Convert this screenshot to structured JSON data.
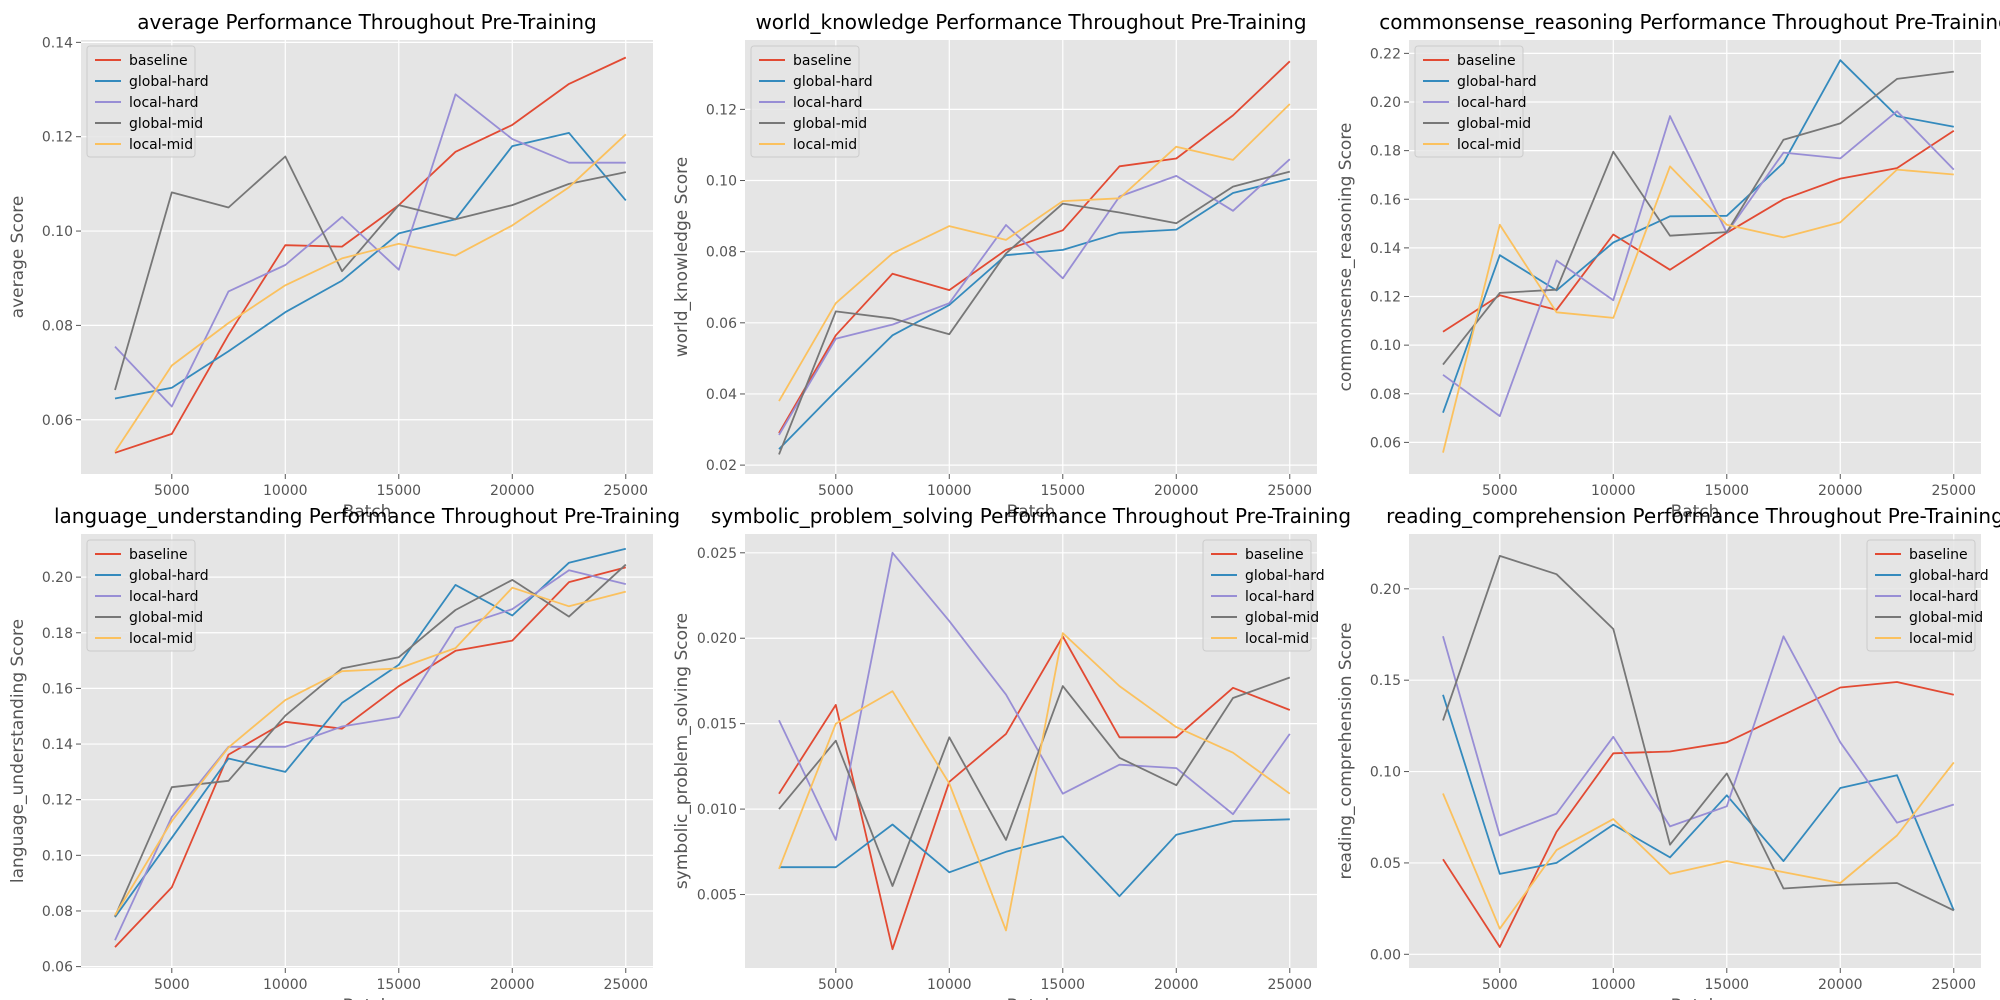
{
  "colors": {
    "baseline": "#E24A33",
    "global-hard": "#348ABD",
    "local-hard": "#988ED5",
    "global-mid": "#777777",
    "local-mid": "#FBC15E",
    "panel_bg": "#E5E5E5",
    "grid": "#FFFFFF"
  },
  "chart_data": [
    {
      "type": "line",
      "title": "average Performance Throughout Pre-Training",
      "xlabel": "Batch",
      "ylabel": "average Score",
      "xlim": [
        1000,
        26200
      ],
      "ylim": [
        0.0485,
        0.1405
      ],
      "xticks": [
        5000,
        10000,
        15000,
        20000,
        25000
      ],
      "yticks": [
        0.06,
        0.08,
        0.1,
        0.12,
        0.14
      ],
      "ytick_decimals": 2,
      "legend_loc": "upper left",
      "grid": true,
      "x": [
        2500,
        5000,
        7500,
        10000,
        12500,
        15000,
        17500,
        20000,
        22500,
        25000
      ],
      "series": [
        {
          "name": "baseline",
          "values": [
            0.053,
            0.057,
            0.078,
            0.097,
            0.0967,
            0.1055,
            0.1168,
            0.1225,
            0.1312,
            0.1368
          ]
        },
        {
          "name": "global-hard",
          "values": [
            0.0645,
            0.0668,
            0.0745,
            0.0828,
            0.0895,
            0.0995,
            0.1025,
            0.118,
            0.1208,
            0.1065
          ]
        },
        {
          "name": "local-hard",
          "values": [
            0.0755,
            0.0628,
            0.0872,
            0.0928,
            0.103,
            0.0918,
            0.129,
            0.1195,
            0.1145,
            0.1145
          ]
        },
        {
          "name": "global-mid",
          "values": [
            0.0663,
            0.1082,
            0.105,
            0.1158,
            0.0915,
            0.1055,
            0.1025,
            0.1055,
            0.11,
            0.1125
          ]
        },
        {
          "name": "local-mid",
          "values": [
            0.0532,
            0.0715,
            0.0805,
            0.0885,
            0.0942,
            0.0973,
            0.0948,
            0.1012,
            0.1093,
            0.1205
          ]
        }
      ]
    },
    {
      "type": "line",
      "title": "world_knowledge Performance Throughout Pre-Training",
      "xlabel": "Batch",
      "ylabel": "world_knowledge Score",
      "xlim": [
        1000,
        26200
      ],
      "ylim": [
        0.0175,
        0.1395
      ],
      "xticks": [
        5000,
        10000,
        15000,
        20000,
        25000
      ],
      "yticks": [
        0.02,
        0.04,
        0.06,
        0.08,
        0.1,
        0.12
      ],
      "ytick_decimals": 2,
      "legend_loc": "upper left",
      "grid": true,
      "x": [
        2500,
        5000,
        7500,
        10000,
        12500,
        15000,
        17500,
        20000,
        22500,
        25000
      ],
      "series": [
        {
          "name": "baseline",
          "values": [
            0.029,
            0.0565,
            0.0738,
            0.0692,
            0.0805,
            0.086,
            0.104,
            0.1062,
            0.1183,
            0.1335
          ]
        },
        {
          "name": "global-hard",
          "values": [
            0.0245,
            0.0408,
            0.0565,
            0.065,
            0.079,
            0.0805,
            0.0853,
            0.0862,
            0.0965,
            0.1005
          ]
        },
        {
          "name": "local-hard",
          "values": [
            0.0285,
            0.0555,
            0.0595,
            0.0655,
            0.0875,
            0.0725,
            0.0955,
            0.1013,
            0.0915,
            0.106
          ]
        },
        {
          "name": "global-mid",
          "values": [
            0.023,
            0.0632,
            0.0612,
            0.0568,
            0.0795,
            0.0935,
            0.091,
            0.088,
            0.0983,
            0.1025
          ]
        },
        {
          "name": "local-mid",
          "values": [
            0.038,
            0.0655,
            0.0795,
            0.0872,
            0.0833,
            0.0942,
            0.095,
            0.1095,
            0.1058,
            0.1215
          ]
        }
      ]
    },
    {
      "type": "line",
      "title": "commonsense_reasoning Performance Throughout Pre-Training",
      "xlabel": "Batch",
      "ylabel": "commonsense_reasoning Score",
      "xlim": [
        1000,
        26200
      ],
      "ylim": [
        0.047,
        0.2255
      ],
      "xticks": [
        5000,
        10000,
        15000,
        20000,
        25000
      ],
      "yticks": [
        0.06,
        0.08,
        0.1,
        0.12,
        0.14,
        0.16,
        0.18,
        0.2,
        0.22
      ],
      "ytick_decimals": 2,
      "legend_loc": "upper left",
      "grid": true,
      "x": [
        2500,
        5000,
        7500,
        10000,
        12500,
        15000,
        17500,
        20000,
        22500,
        25000
      ],
      "series": [
        {
          "name": "baseline",
          "values": [
            0.1055,
            0.1205,
            0.1145,
            0.1455,
            0.131,
            0.1462,
            0.16,
            0.1685,
            0.1728,
            0.1882
          ]
        },
        {
          "name": "global-hard",
          "values": [
            0.0722,
            0.137,
            0.1225,
            0.1422,
            0.153,
            0.1532,
            0.175,
            0.2172,
            0.1942,
            0.1898
          ]
        },
        {
          "name": "local-hard",
          "values": [
            0.0878,
            0.0708,
            0.1348,
            0.1185,
            0.1942,
            0.1462,
            0.1792,
            0.1768,
            0.1962,
            0.1722
          ]
        },
        {
          "name": "global-mid",
          "values": [
            0.092,
            0.1215,
            0.1228,
            0.1795,
            0.145,
            0.1465,
            0.1845,
            0.1912,
            0.2095,
            0.2125
          ]
        },
        {
          "name": "local-mid",
          "values": [
            0.0558,
            0.1495,
            0.1135,
            0.1112,
            0.1735,
            0.1495,
            0.1443,
            0.1505,
            0.1722,
            0.1702
          ]
        }
      ]
    },
    {
      "type": "line",
      "title": "language_understanding Performance Throughout Pre-Training",
      "xlabel": "Batch",
      "ylabel": "language_understanding Score",
      "xlim": [
        1000,
        26200
      ],
      "ylim": [
        0.0595,
        0.2155
      ],
      "xticks": [
        5000,
        10000,
        15000,
        20000,
        25000
      ],
      "yticks": [
        0.06,
        0.08,
        0.1,
        0.12,
        0.14,
        0.16,
        0.18,
        0.2
      ],
      "ytick_decimals": 2,
      "legend_loc": "upper left",
      "grid": true,
      "x": [
        2500,
        5000,
        7500,
        10000,
        12500,
        15000,
        17500,
        20000,
        22500,
        25000
      ],
      "series": [
        {
          "name": "baseline",
          "values": [
            0.067,
            0.0885,
            0.1362,
            0.148,
            0.1455,
            0.1608,
            0.1735,
            0.1772,
            0.1982,
            0.2035
          ]
        },
        {
          "name": "global-hard",
          "values": [
            0.0778,
            0.1063,
            0.1348,
            0.13,
            0.1548,
            0.1685,
            0.1972,
            0.1862,
            0.2052,
            0.2102
          ]
        },
        {
          "name": "local-hard",
          "values": [
            0.0695,
            0.1138,
            0.139,
            0.139,
            0.1463,
            0.1497,
            0.1818,
            0.1885,
            0.2025,
            0.1975
          ]
        },
        {
          "name": "global-mid",
          "values": [
            0.078,
            0.1245,
            0.1268,
            0.1502,
            0.1672,
            0.1712,
            0.1882,
            0.199,
            0.1858,
            0.2045
          ]
        },
        {
          "name": "local-mid",
          "values": [
            0.0785,
            0.1123,
            0.1388,
            0.1558,
            0.1662,
            0.1672,
            0.1745,
            0.1962,
            0.1895,
            0.1948
          ]
        }
      ]
    },
    {
      "type": "line",
      "title": "symbolic_problem_solving Performance Throughout Pre-Training",
      "xlabel": "Batch",
      "ylabel": "symbolic_problem_solving Score",
      "xlim": [
        1000,
        26200
      ],
      "ylim": [
        0.0007,
        0.0261
      ],
      "xticks": [
        5000,
        10000,
        15000,
        20000,
        25000
      ],
      "yticks": [
        0.005,
        0.01,
        0.015,
        0.02,
        0.025
      ],
      "ytick_decimals": 3,
      "legend_loc": "upper right",
      "grid": true,
      "x": [
        2500,
        5000,
        7500,
        10000,
        12500,
        15000,
        17500,
        20000,
        22500,
        25000
      ],
      "series": [
        {
          "name": "baseline",
          "values": [
            0.0109,
            0.0161,
            0.0018,
            0.0116,
            0.0144,
            0.0201,
            0.0142,
            0.0142,
            0.0171,
            0.0158
          ]
        },
        {
          "name": "global-hard",
          "values": [
            0.0066,
            0.0066,
            0.0091,
            0.0063,
            0.0075,
            0.0084,
            0.0049,
            0.0085,
            0.0093,
            0.0094
          ]
        },
        {
          "name": "local-hard",
          "values": [
            0.0152,
            0.0082,
            0.025,
            0.021,
            0.0167,
            0.0109,
            0.0126,
            0.0124,
            0.0097,
            0.0144
          ]
        },
        {
          "name": "global-mid",
          "values": [
            0.01,
            0.014,
            0.0055,
            0.0142,
            0.0082,
            0.0172,
            0.013,
            0.0114,
            0.0165,
            0.0177
          ]
        },
        {
          "name": "local-mid",
          "values": [
            0.0065,
            0.015,
            0.0169,
            0.0115,
            0.0029,
            0.0203,
            0.0172,
            0.0148,
            0.0133,
            0.0109
          ]
        }
      ]
    },
    {
      "type": "line",
      "title": "reading_comprehension Performance Throughout Pre-Training",
      "xlabel": "Batch",
      "ylabel": "reading_comprehension Score",
      "xlim": [
        1000,
        26200
      ],
      "ylim": [
        -0.0075,
        0.23
      ],
      "xticks": [
        5000,
        10000,
        15000,
        20000,
        25000
      ],
      "yticks": [
        0.0,
        0.05,
        0.1,
        0.15,
        0.2
      ],
      "ytick_decimals": 2,
      "legend_loc": "upper right",
      "grid": true,
      "x": [
        2500,
        5000,
        7500,
        10000,
        12500,
        15000,
        17500,
        20000,
        22500,
        25000
      ],
      "series": [
        {
          "name": "baseline",
          "values": [
            0.052,
            0.004,
            0.067,
            0.11,
            0.111,
            0.116,
            0.131,
            0.146,
            0.149,
            0.142
          ]
        },
        {
          "name": "global-hard",
          "values": [
            0.142,
            0.044,
            0.05,
            0.071,
            0.053,
            0.087,
            0.051,
            0.091,
            0.098,
            0.024
          ]
        },
        {
          "name": "local-hard",
          "values": [
            0.174,
            0.065,
            0.077,
            0.119,
            0.07,
            0.081,
            0.174,
            0.116,
            0.072,
            0.082
          ]
        },
        {
          "name": "global-mid",
          "values": [
            0.128,
            0.218,
            0.208,
            0.178,
            0.06,
            0.099,
            0.036,
            0.038,
            0.039,
            0.024
          ]
        },
        {
          "name": "local-mid",
          "values": [
            0.088,
            0.014,
            0.057,
            0.074,
            0.044,
            0.051,
            0.045,
            0.039,
            0.065,
            0.105
          ]
        }
      ]
    }
  ]
}
